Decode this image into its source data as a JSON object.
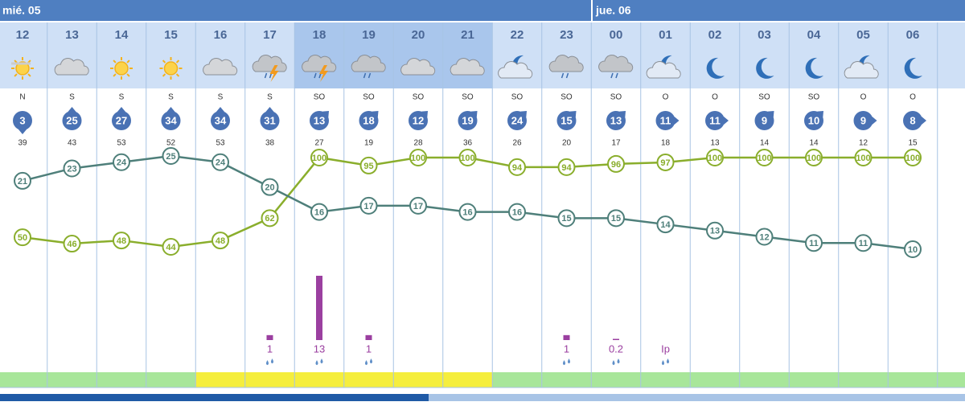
{
  "days": [
    "mié. 05",
    "jue. 06"
  ],
  "hours": [
    "12",
    "13",
    "14",
    "15",
    "16",
    "17",
    "18",
    "19",
    "20",
    "21",
    "22",
    "23",
    "00",
    "01",
    "02",
    "03",
    "04",
    "05",
    "06"
  ],
  "wind_direction": [
    "N",
    "S",
    "S",
    "S",
    "S",
    "S",
    "SO",
    "SO",
    "SO",
    "SO",
    "SO",
    "SO",
    "SO",
    "O",
    "O",
    "SO",
    "SO",
    "O",
    "O"
  ],
  "wind_speed": [
    3,
    25,
    27,
    34,
    34,
    31,
    13,
    18,
    12,
    19,
    24,
    15,
    13,
    11,
    11,
    9,
    10,
    9,
    8
  ],
  "wind_gust": [
    39,
    43,
    53,
    52,
    53,
    38,
    27,
    19,
    28,
    36,
    26,
    20,
    17,
    18,
    13,
    14,
    14,
    12,
    15
  ],
  "temperature": {
    "color": "#4e7f7a",
    "values": [
      21,
      23,
      24,
      25,
      24,
      20,
      16,
      17,
      17,
      16,
      16,
      15,
      15,
      14,
      13,
      12,
      11,
      11,
      10
    ]
  },
  "humidity": {
    "color": "#8aae2c",
    "values": [
      50,
      46,
      48,
      44,
      48,
      62,
      100,
      95,
      100,
      100,
      94,
      94,
      96,
      97,
      100,
      100,
      100,
      100,
      100
    ]
  },
  "precipitation": {
    "color": "#9b3fa0",
    "values": [
      null,
      null,
      null,
      null,
      null,
      1,
      13,
      1,
      null,
      null,
      null,
      1,
      0.2,
      null,
      null,
      null,
      null,
      null,
      null
    ],
    "value_labels": [
      null,
      null,
      null,
      null,
      null,
      "1",
      "13",
      "1",
      null,
      null,
      null,
      "1",
      "0.2",
      "Ip",
      null,
      null,
      null,
      null,
      null
    ]
  },
  "band_colors": [
    "#a8e69a",
    "#a8e69a",
    "#a8e69a",
    "#a8e69a",
    "#f5ee3c",
    "#f5ee3c",
    "#f5ee3c",
    "#f5ee3c",
    "#f5ee3c",
    "#f5ee3c",
    "#a8e69a",
    "#a8e69a",
    "#a8e69a",
    "#a8e69a",
    "#a8e69a",
    "#a8e69a",
    "#a8e69a",
    "#a8e69a",
    "#a8e69a"
  ]
}
